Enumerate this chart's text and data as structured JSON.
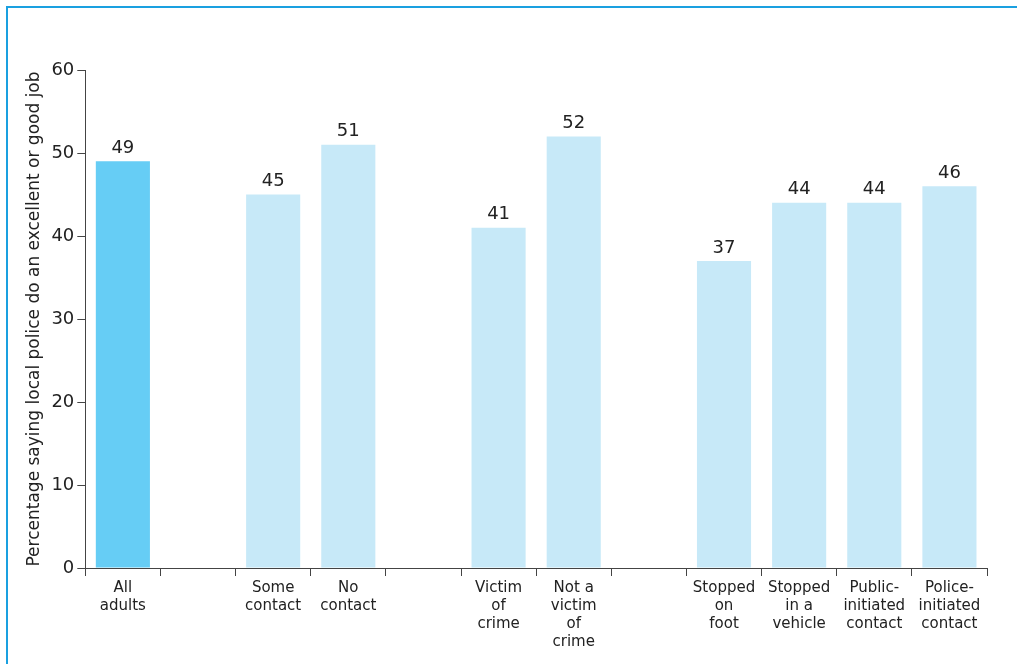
{
  "chart_data": {
    "type": "bar",
    "ylabel": "Percentage saying local police do an excellent or good job",
    "categories": [
      "All adults",
      null,
      "Some contact",
      "No contact",
      null,
      "Victim of crime",
      "Not a victim of crime",
      null,
      "Stopped on foot",
      "Stopped in a vehicle",
      "Public-initiated contact",
      "Police-initiated contact"
    ],
    "values": [
      49,
      null,
      45,
      51,
      null,
      41,
      52,
      null,
      37,
      44,
      44,
      46
    ],
    "colors": [
      "#66cdf5",
      "#c7e9f8",
      "#c7e9f8",
      "#c7e9f8",
      "#c7e9f8",
      "#c7e9f8",
      "#c7e9f8",
      "#c7e9f8",
      "#c7e9f8",
      "#c7e9f8",
      "#c7e9f8",
      "#c7e9f8"
    ],
    "ylim": [
      0,
      60
    ],
    "yticks": [
      0,
      10,
      20,
      30,
      40,
      50,
      60
    ],
    "grid": false,
    "legend": false,
    "data_labels": true
  }
}
